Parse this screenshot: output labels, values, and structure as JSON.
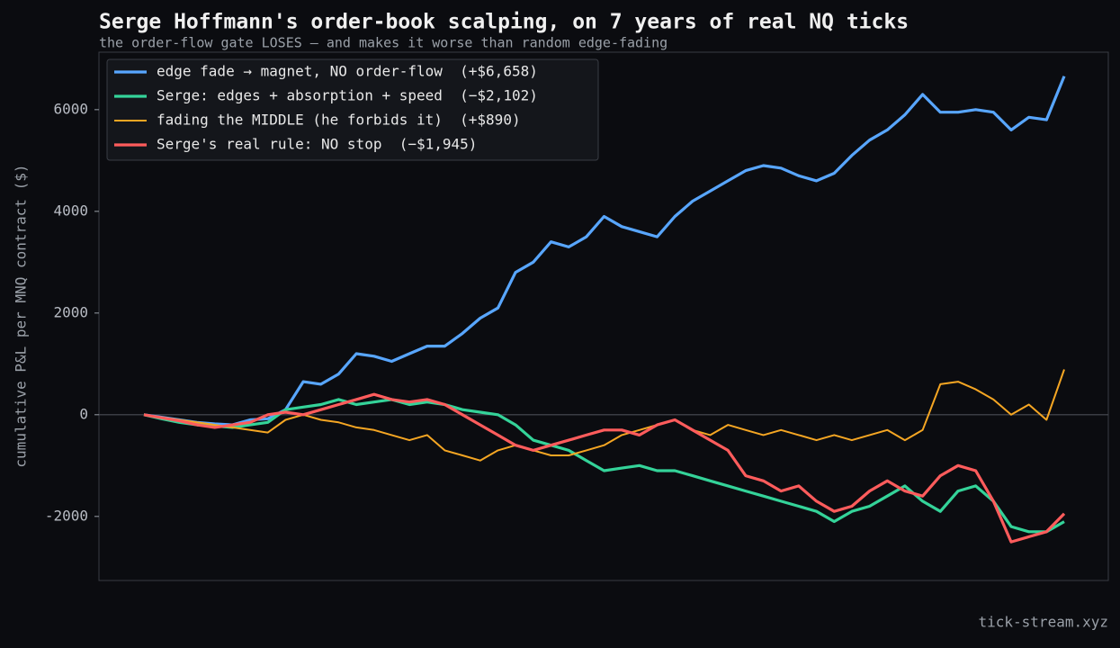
{
  "chart_data": {
    "type": "line",
    "title": "Serge Hoffmann's order-book scalping, on 7 years of real NQ ticks",
    "subtitle": "the order-flow gate LOSES — and makes it worse than random edge-fading",
    "y_label": "cumulative P&L per MNQ contract ($)",
    "watermark": "tick-stream.xyz",
    "ylim": [
      -3260,
      7130
    ],
    "yticks": [
      -2000,
      0,
      2000,
      4000,
      6000
    ],
    "zero_line": 0,
    "legend": "upper left",
    "series": [
      {
        "name": "edge fade → magnet, NO order-flow  (+$6,658)",
        "color": "#58a6ff",
        "values": [
          0,
          -50,
          -100,
          -150,
          -180,
          -200,
          -100,
          -80,
          100,
          650,
          600,
          800,
          1200,
          1150,
          1050,
          1200,
          1350,
          1350,
          1600,
          1900,
          2100,
          2800,
          3000,
          3400,
          3300,
          3500,
          3900,
          3700,
          3600,
          3500,
          3900,
          4200,
          4400,
          4600,
          4800,
          4900,
          4850,
          4700,
          4600,
          4750,
          5100,
          5400,
          5600,
          5900,
          6300,
          5950,
          5950,
          6000,
          5950,
          5600,
          5850,
          5800,
          6658
        ]
      },
      {
        "name": "Serge: edges + absorption + speed  (−$2,102)",
        "color": "#34d399",
        "values": [
          0,
          -80,
          -150,
          -200,
          -220,
          -250,
          -200,
          -150,
          100,
          150,
          200,
          300,
          200,
          250,
          300,
          200,
          250,
          200,
          100,
          50,
          0,
          -200,
          -500,
          -600,
          -700,
          -900,
          -1100,
          -1050,
          -1000,
          -1100,
          -1100,
          -1200,
          -1300,
          -1400,
          -1500,
          -1600,
          -1700,
          -1800,
          -1900,
          -2100,
          -1900,
          -1800,
          -1600,
          -1400,
          -1700,
          -1900,
          -1500,
          -1400,
          -1700,
          -2200,
          -2300,
          -2300,
          -2102
        ]
      },
      {
        "name": "fading the MIDDLE (he forbids it)  (+$890)",
        "color": "#f5a623",
        "values": [
          0,
          -50,
          -100,
          -150,
          -200,
          -250,
          -300,
          -350,
          -100,
          0,
          -100,
          -150,
          -250,
          -300,
          -400,
          -500,
          -400,
          -700,
          -800,
          -900,
          -700,
          -600,
          -700,
          -800,
          -800,
          -700,
          -600,
          -400,
          -300,
          -200,
          -100,
          -300,
          -400,
          -200,
          -300,
          -400,
          -300,
          -400,
          -500,
          -400,
          -500,
          -400,
          -300,
          -500,
          -300,
          600,
          650,
          500,
          300,
          0,
          200,
          -100,
          890
        ]
      },
      {
        "name": "Serge's real rule: NO stop  (−$1,945)",
        "color": "#ff5c5c",
        "values": [
          0,
          -60,
          -120,
          -200,
          -250,
          -200,
          -150,
          0,
          50,
          0,
          100,
          200,
          300,
          400,
          300,
          250,
          300,
          200,
          0,
          -200,
          -400,
          -600,
          -700,
          -600,
          -500,
          -400,
          -300,
          -300,
          -400,
          -200,
          -100,
          -300,
          -500,
          -700,
          -1200,
          -1300,
          -1500,
          -1400,
          -1700,
          -1900,
          -1800,
          -1500,
          -1300,
          -1500,
          -1600,
          -1200,
          -1000,
          -1100,
          -1700,
          -2500,
          -2400,
          -2300,
          -1945
        ]
      }
    ]
  }
}
